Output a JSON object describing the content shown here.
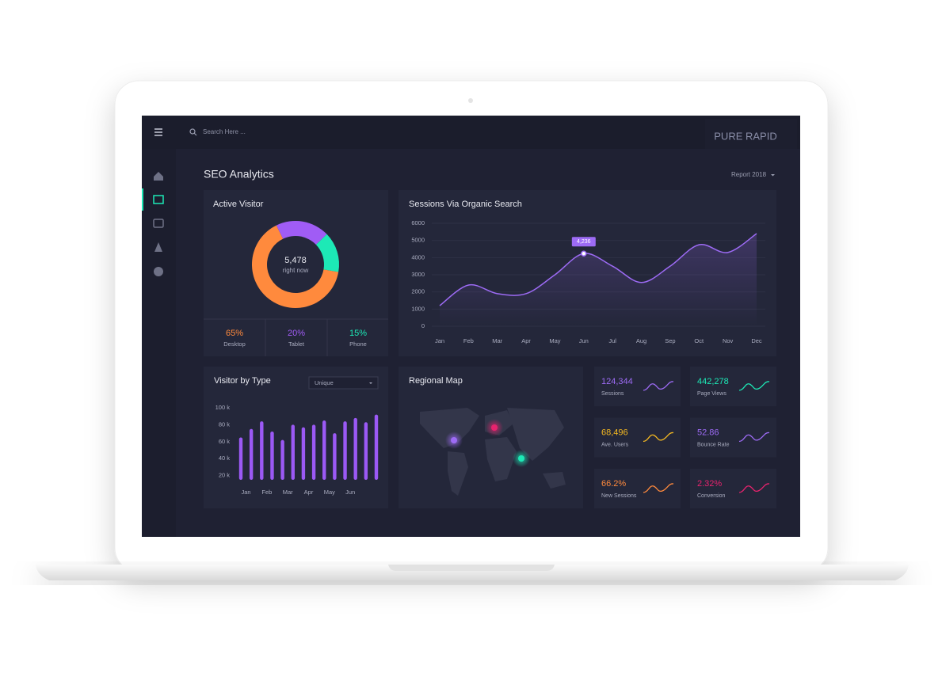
{
  "header": {
    "search_placeholder": "Search Here ...",
    "brand": "PURE RAPID"
  },
  "page": {
    "title": "SEO Analytics",
    "report_selector": "Report 2018"
  },
  "chart_data": [
    {
      "type": "donut",
      "title": "Active Visitor",
      "center_text": "5,478",
      "center_subtext": "right now",
      "categories": [
        "Desktop",
        "Tablet",
        "Phone"
      ],
      "values": [
        65,
        20,
        15
      ],
      "value_labels": [
        "65%",
        "20%",
        "15%"
      ],
      "colors": [
        "#ff8a3d",
        "#a05cf5",
        "#1de9b6"
      ]
    },
    {
      "type": "line",
      "title": "Sessions Via Organic Search",
      "categories": [
        "Jan",
        "Feb",
        "Mar",
        "Apr",
        "May",
        "Jun",
        "Jul",
        "Aug",
        "Sep",
        "Oct",
        "Nov",
        "Dec"
      ],
      "values": [
        1200,
        2400,
        1900,
        1900,
        3000,
        4236,
        3500,
        2550,
        3500,
        4750,
        4300,
        5400
      ],
      "value_labels": [
        null,
        null,
        null,
        null,
        null,
        "4,236",
        null,
        null,
        null,
        null,
        null,
        null
      ],
      "color": "#9d6bf5",
      "ylim": [
        0,
        6000
      ],
      "yticks": [
        0,
        1000,
        2000,
        3000,
        4000,
        5000,
        6000
      ],
      "grid": true
    },
    {
      "type": "bar",
      "title": "Visitor by Type",
      "selector": "Unique",
      "categories": [
        "Jan",
        null,
        "Feb",
        null,
        "Mar",
        null,
        "Apr",
        null,
        "May",
        null,
        "Jun",
        null,
        null,
        null
      ],
      "values": [
        65000,
        75000,
        84000,
        72000,
        62000,
        80000,
        77000,
        80000,
        85000,
        70000,
        84000,
        88000,
        83000,
        92000
      ],
      "color": "#9b59f5",
      "ylim": [
        15000,
        100000
      ],
      "yticks": [
        {
          "value": 20000,
          "label": "20 k"
        },
        {
          "value": 40000,
          "label": "40 k"
        },
        {
          "value": 60000,
          "label": "60 k"
        },
        {
          "value": 80000,
          "label": "80 k"
        },
        {
          "value": 100000,
          "label": "100 k"
        }
      ]
    }
  ],
  "map": {
    "title": "Regional Map"
  },
  "stats": [
    {
      "value": "124,344",
      "label": "Sessions",
      "color": "#9d6bf5"
    },
    {
      "value": "442,278",
      "label": "Page Views",
      "color": "#1de9b6"
    },
    {
      "value": "68,496",
      "label": "Ave. Users",
      "color": "#f5b921"
    },
    {
      "value": "52.86",
      "label": "Bounce Rate",
      "color": "#9d6bf5"
    },
    {
      "value": "66.2%",
      "label": "New Sessions",
      "color": "#ff8a3d"
    },
    {
      "value": "2.32%",
      "label": "Conversion",
      "color": "#e8236e"
    }
  ]
}
